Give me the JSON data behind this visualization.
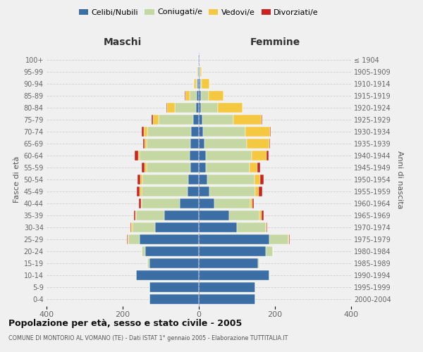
{
  "age_groups": [
    "0-4",
    "5-9",
    "10-14",
    "15-19",
    "20-24",
    "25-29",
    "30-34",
    "35-39",
    "40-44",
    "45-49",
    "50-54",
    "55-59",
    "60-64",
    "65-69",
    "70-74",
    "75-79",
    "80-84",
    "85-89",
    "90-94",
    "95-99",
    "100+"
  ],
  "birth_years": [
    "2000-2004",
    "1995-1999",
    "1990-1994",
    "1985-1989",
    "1980-1984",
    "1975-1979",
    "1970-1974",
    "1965-1969",
    "1960-1964",
    "1955-1959",
    "1950-1954",
    "1945-1949",
    "1940-1944",
    "1935-1939",
    "1930-1934",
    "1925-1929",
    "1920-1924",
    "1915-1919",
    "1910-1914",
    "1905-1909",
    "≤ 1904"
  ],
  "maschi": {
    "celibi": [
      130,
      130,
      165,
      130,
      140,
      155,
      115,
      90,
      50,
      30,
      28,
      22,
      25,
      22,
      20,
      15,
      8,
      5,
      3,
      2,
      1
    ],
    "coniugati": [
      0,
      0,
      0,
      5,
      10,
      30,
      60,
      75,
      100,
      120,
      120,
      115,
      130,
      115,
      115,
      90,
      55,
      20,
      5,
      2,
      0
    ],
    "vedovi": [
      0,
      0,
      0,
      0,
      0,
      2,
      2,
      2,
      2,
      5,
      5,
      5,
      5,
      5,
      10,
      15,
      20,
      10,
      5,
      1,
      0
    ],
    "divorziati": [
      0,
      0,
      0,
      0,
      0,
      2,
      2,
      3,
      5,
      8,
      8,
      8,
      8,
      5,
      5,
      5,
      3,
      2,
      0,
      0,
      0
    ]
  },
  "femmine": {
    "nubili": [
      148,
      148,
      185,
      155,
      175,
      185,
      100,
      80,
      40,
      28,
      22,
      18,
      18,
      15,
      12,
      10,
      5,
      5,
      3,
      2,
      1
    ],
    "coniugate": [
      0,
      0,
      0,
      5,
      20,
      50,
      75,
      80,
      95,
      120,
      125,
      115,
      120,
      110,
      110,
      80,
      45,
      20,
      5,
      1,
      0
    ],
    "vedove": [
      0,
      0,
      0,
      0,
      0,
      2,
      2,
      5,
      5,
      10,
      15,
      20,
      40,
      60,
      65,
      75,
      65,
      40,
      20,
      5,
      1
    ],
    "divorziate": [
      0,
      0,
      0,
      0,
      0,
      2,
      3,
      5,
      5,
      8,
      8,
      8,
      5,
      2,
      2,
      2,
      0,
      0,
      0,
      0,
      0
    ]
  },
  "colors": {
    "celibi": "#3a6ea5",
    "coniugati": "#c5d8a4",
    "vedovi": "#f5c842",
    "divorziati": "#cc2222"
  },
  "title": "Popolazione per età, sesso e stato civile - 2005",
  "subtitle": "COMUNE DI MONTORIO AL VOMANO (TE) - Dati ISTAT 1° gennaio 2005 - Elaborazione TUTTITALIA.IT",
  "xlabel_left": "Maschi",
  "xlabel_right": "Femmine",
  "ylabel_left": "Fasce di età",
  "ylabel_right": "Anni di nascita",
  "xlim": 400,
  "background_color": "#f0f0f0",
  "legend_labels": [
    "Celibi/Nubili",
    "Coniugati/e",
    "Vedovi/e",
    "Divorziati/e"
  ]
}
